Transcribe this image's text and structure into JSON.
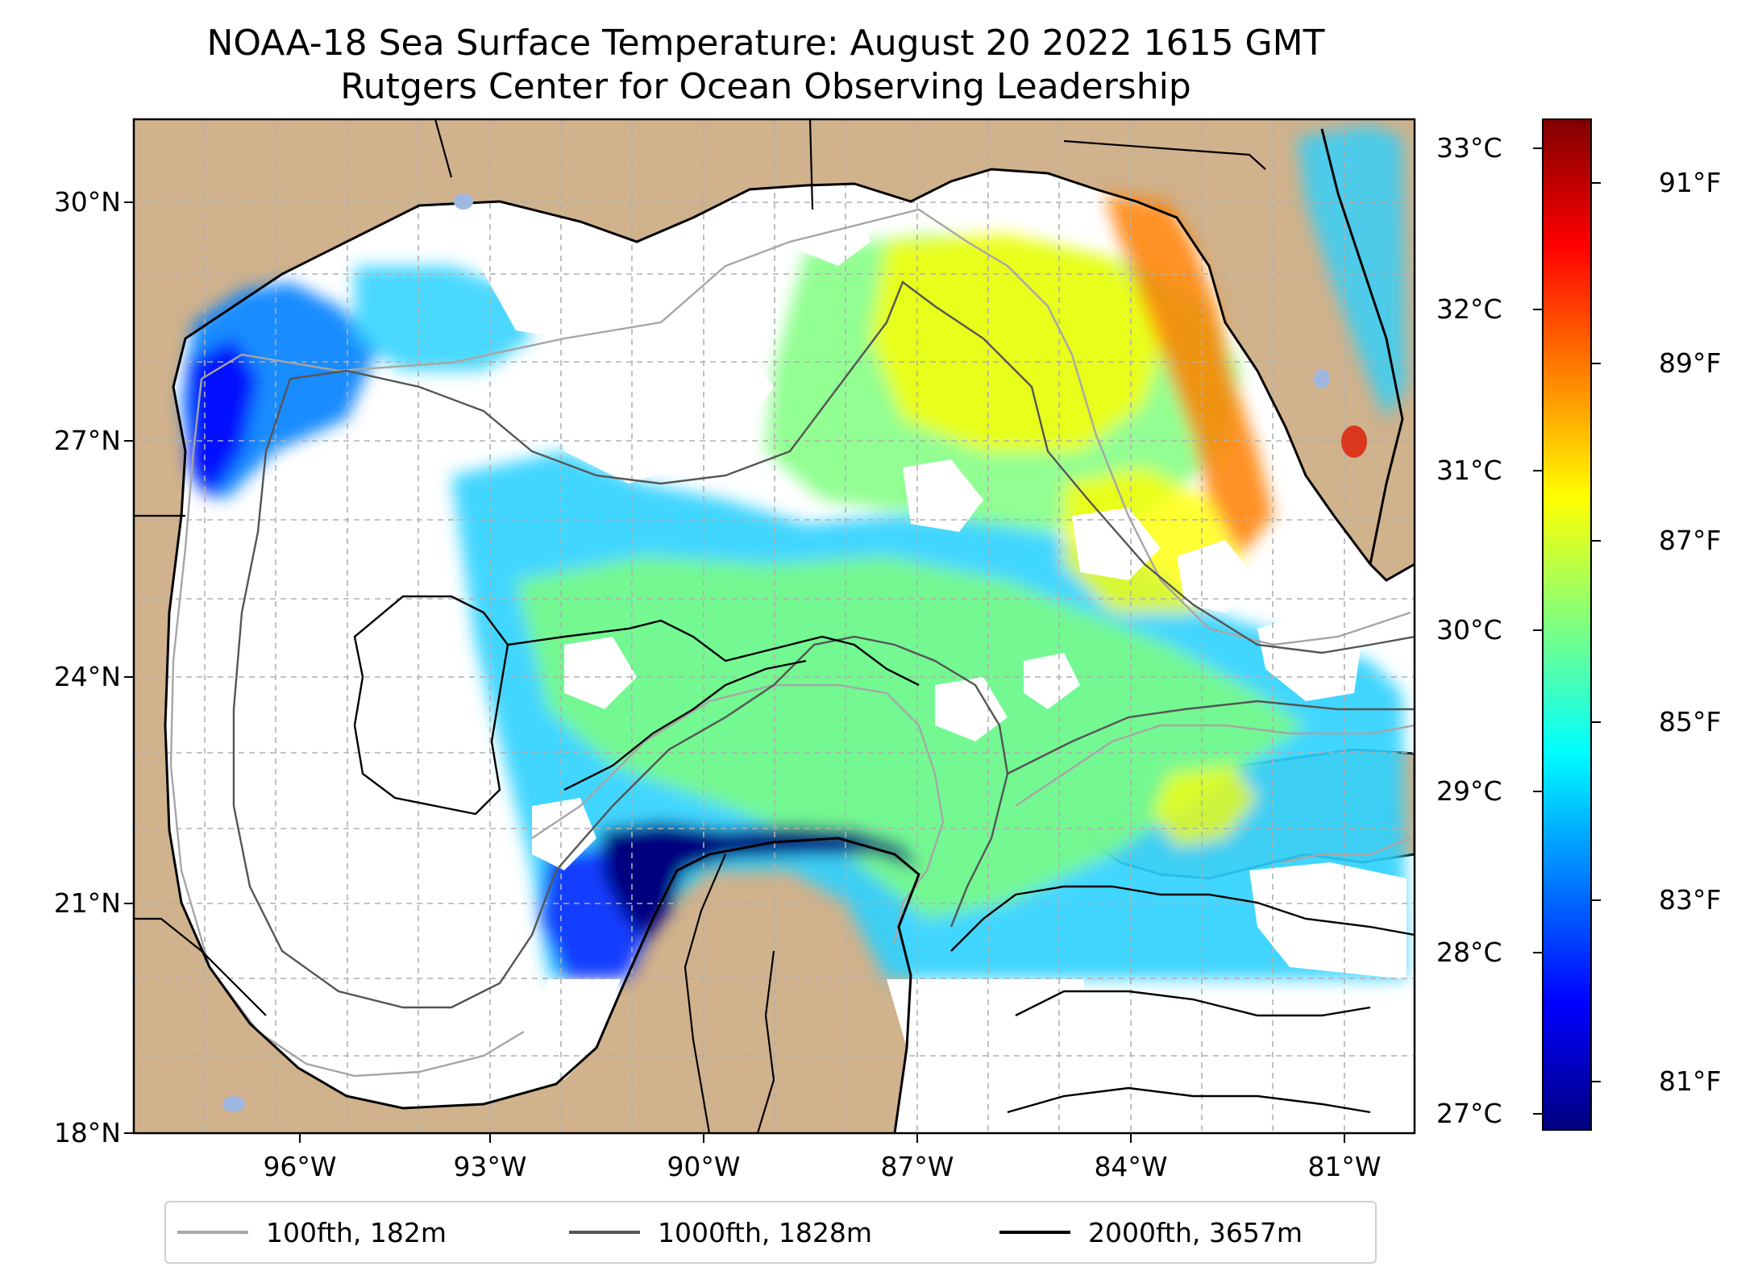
{
  "title": {
    "line1": "NOAA-18 Sea Surface Temperature: August 20 2022 1615 GMT",
    "line2": "Rutgers Center for Ocean Observing Leadership"
  },
  "map": {
    "lat_ticks": [
      "30°N",
      "27°N",
      "24°N",
      "21°N",
      "18°N"
    ],
    "lon_ticks": [
      "96°W",
      "93°W",
      "90°W",
      "87°W",
      "84°W",
      "81°W"
    ],
    "extent": {
      "lon_min": -98.2,
      "lon_max": -80.2,
      "lat_min": 18.0,
      "lat_max": 31.0
    },
    "colors": {
      "land": "#d0b28c",
      "no_data": "#ffffff",
      "grid": "#b0b0b0",
      "coast": "#000000"
    }
  },
  "colorbar": {
    "celsius_ticks": [
      "33°C",
      "32°C",
      "31°C",
      "30°C",
      "29°C",
      "28°C",
      "27°C"
    ],
    "fahrenheit_ticks": [
      "91°F",
      "89°F",
      "87°F",
      "85°F",
      "83°F",
      "81°F"
    ],
    "range_celsius": [
      26.9,
      33.2
    ],
    "colormap": [
      "#00007f",
      "#0000ff",
      "#007fff",
      "#00ffff",
      "#7fff7f",
      "#ffff00",
      "#ff7f00",
      "#ff0000",
      "#7f0000"
    ]
  },
  "legend": {
    "items": [
      {
        "label": "100fth, 182m",
        "color": "#a6a6a6"
      },
      {
        "label": "1000fth, 1828m",
        "color": "#555555"
      },
      {
        "label": "2000fth, 3657m",
        "color": "#000000"
      }
    ]
  }
}
